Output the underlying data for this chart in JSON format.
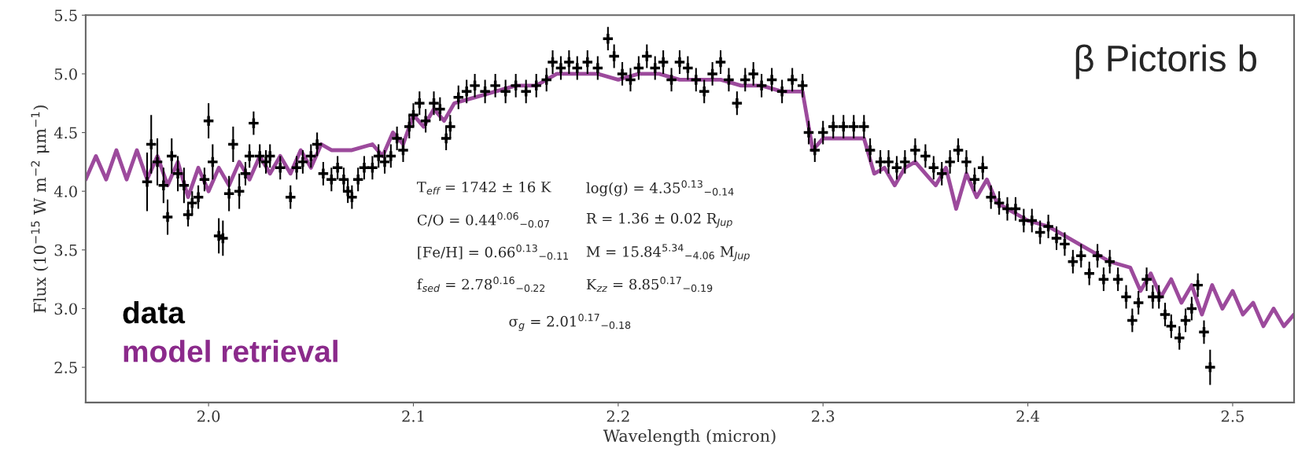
{
  "chart_data": {
    "type": "scatter",
    "title": "β Pictoris b",
    "xlabel": "Wavelength (micron)",
    "ylabel": "Flux (10$^{−15}$ W m$^{−2}$ μm$^{−1}$)",
    "xlim": [
      1.94,
      2.53
    ],
    "xticks": [
      {
        "value": 2,
        "label": "2.0"
      },
      2.1,
      2.2,
      2.3,
      2.4,
      2.5
    ],
    "ylim": [
      2.2,
      5.5
    ],
    "yticks": [
      2.5,
      {
        "value": 3,
        "label": "3.0"
      },
      3.5,
      {
        "value": 4,
        "label": "4.0"
      },
      4.5,
      {
        "value": 5,
        "label": "5.0"
      },
      5.5
    ],
    "grid": false,
    "legend": "bottom left",
    "annotations": [
      "T$_{eff}$ = 1742 ± 16 K",
      "log(g) = 4.35$^{0.13}$$_{−0.14}$",
      "C/O = 0.44$^{0.06}$$_{−0.07}$",
      "R = 1.36 ± 0.02 R$_{Jup}$",
      "[Fe/H] = 0.66$^{0.13}$$_{−0.11}$",
      "M = 15.84$^{5.34}$$_{−4.06}$ M$_{Jup}$",
      "f$_{sed}$ = 2.78$^{0.16}$$_{−0.22}$",
      "K$_{zz}$ = 8.85$^{0.17}$$_{−0.19}$",
      "σ$_{g}$ = 2.01$^{0.17}$$_{−0.18}$"
    ],
    "series": [
      {
        "name": "model retrieval",
        "type": "line",
        "color": "#8b2a8b",
        "line_style": "solid",
        "marker": "none",
        "x": [
          1.94,
          1.945,
          1.95,
          1.955,
          1.96,
          1.965,
          1.97,
          1.975,
          1.98,
          1.985,
          1.99,
          1.995,
          2.0,
          2.005,
          2.01,
          2.015,
          2.02,
          2.025,
          2.03,
          2.035,
          2.04,
          2.045,
          2.05,
          2.055,
          2.06,
          2.07,
          2.08,
          2.085,
          2.09,
          2.095,
          2.1,
          2.105,
          2.11,
          2.115,
          2.12,
          2.13,
          2.14,
          2.15,
          2.16,
          2.17,
          2.18,
          2.19,
          2.2,
          2.21,
          2.22,
          2.23,
          2.24,
          2.25,
          2.26,
          2.27,
          2.28,
          2.29,
          2.295,
          2.3,
          2.31,
          2.32,
          2.325,
          2.33,
          2.335,
          2.34,
          2.345,
          2.35,
          2.355,
          2.36,
          2.365,
          2.37,
          2.375,
          2.38,
          2.385,
          2.39,
          2.4,
          2.41,
          2.42,
          2.43,
          2.44,
          2.45,
          2.455,
          2.46,
          2.465,
          2.47,
          2.475,
          2.48,
          2.485,
          2.49,
          2.495,
          2.5,
          2.505,
          2.51,
          2.515,
          2.52,
          2.525,
          2.53
        ],
        "values": [
          4.1,
          4.3,
          4.1,
          4.35,
          4.1,
          4.35,
          4.1,
          4.3,
          4.05,
          4.25,
          3.95,
          4.2,
          4.0,
          4.2,
          4.05,
          4.25,
          4.1,
          4.3,
          4.15,
          4.3,
          4.15,
          4.35,
          4.2,
          4.4,
          4.35,
          4.35,
          4.4,
          4.3,
          4.5,
          4.4,
          4.65,
          4.55,
          4.7,
          4.6,
          4.75,
          4.8,
          4.85,
          4.9,
          4.9,
          5.0,
          5.0,
          5.0,
          4.95,
          5.0,
          5.0,
          4.95,
          4.95,
          4.95,
          4.9,
          4.9,
          4.85,
          4.85,
          4.35,
          4.45,
          4.45,
          4.45,
          4.15,
          4.2,
          4.05,
          4.2,
          4.25,
          4.15,
          4.05,
          4.2,
          3.85,
          4.15,
          3.95,
          4.1,
          3.9,
          3.85,
          3.75,
          3.7,
          3.6,
          3.5,
          3.4,
          3.35,
          3.15,
          3.3,
          3.1,
          3.25,
          3.05,
          3.2,
          2.95,
          3.2,
          3.0,
          3.15,
          2.95,
          3.05,
          2.85,
          3.0,
          2.85,
          2.95
        ]
      },
      {
        "name": "data",
        "color": "#000000",
        "marker": "cross",
        "x": [
          1.97,
          1.972,
          1.975,
          1.978,
          1.98,
          1.982,
          1.985,
          1.988,
          1.99,
          1.992,
          1.995,
          1.998,
          2.0,
          2.002,
          2.005,
          2.007,
          2.01,
          2.012,
          2.015,
          2.018,
          2.02,
          2.022,
          2.025,
          2.028,
          2.03,
          2.035,
          2.04,
          2.043,
          2.046,
          2.05,
          2.053,
          2.056,
          2.06,
          2.063,
          2.066,
          2.068,
          2.07,
          2.073,
          2.076,
          2.08,
          2.083,
          2.086,
          2.089,
          2.092,
          2.095,
          2.098,
          2.1,
          2.103,
          2.106,
          2.11,
          2.113,
          2.116,
          2.118,
          2.122,
          2.126,
          2.13,
          2.135,
          2.14,
          2.145,
          2.15,
          2.155,
          2.16,
          2.165,
          2.168,
          2.172,
          2.176,
          2.18,
          2.185,
          2.19,
          2.195,
          2.198,
          2.202,
          2.206,
          2.21,
          2.214,
          2.218,
          2.222,
          2.226,
          2.23,
          2.234,
          2.238,
          2.242,
          2.246,
          2.25,
          2.254,
          2.258,
          2.262,
          2.266,
          2.27,
          2.275,
          2.28,
          2.285,
          2.29,
          2.293,
          2.296,
          2.3,
          2.305,
          2.31,
          2.315,
          2.32,
          2.323,
          2.328,
          2.332,
          2.336,
          2.34,
          2.345,
          2.35,
          2.354,
          2.358,
          2.362,
          2.366,
          2.37,
          2.374,
          2.378,
          2.382,
          2.386,
          2.39,
          2.394,
          2.398,
          2.402,
          2.406,
          2.41,
          2.414,
          2.418,
          2.422,
          2.426,
          2.43,
          2.434,
          2.437,
          2.44,
          2.444,
          2.448,
          2.451,
          2.454,
          2.458,
          2.461,
          2.464,
          2.467,
          2.47,
          2.474,
          2.477,
          2.48,
          2.483,
          2.486,
          2.489
        ],
        "values": [
          4.08,
          4.4,
          4.25,
          4.05,
          3.78,
          4.3,
          4.15,
          4.05,
          3.8,
          3.9,
          3.95,
          4.1,
          4.6,
          4.25,
          3.62,
          3.6,
          3.98,
          4.4,
          4.0,
          4.15,
          4.3,
          4.58,
          4.3,
          4.25,
          4.3,
          4.2,
          3.95,
          4.2,
          4.25,
          4.3,
          4.4,
          4.15,
          4.1,
          4.2,
          4.1,
          4.0,
          3.95,
          4.1,
          4.2,
          4.2,
          4.3,
          4.25,
          4.3,
          4.45,
          4.35,
          4.55,
          4.65,
          4.75,
          4.6,
          4.75,
          4.7,
          4.45,
          4.55,
          4.8,
          4.85,
          4.9,
          4.85,
          4.9,
          4.85,
          4.9,
          4.85,
          4.9,
          4.95,
          5.1,
          5.05,
          5.1,
          5.05,
          5.1,
          5.05,
          5.3,
          5.15,
          5.0,
          4.95,
          5.05,
          5.15,
          5.05,
          5.1,
          4.95,
          5.1,
          5.05,
          4.95,
          4.85,
          5.0,
          5.1,
          4.95,
          4.75,
          4.95,
          5.0,
          4.9,
          4.95,
          4.85,
          4.95,
          4.9,
          4.5,
          4.35,
          4.5,
          4.55,
          4.55,
          4.55,
          4.55,
          4.35,
          4.25,
          4.25,
          4.2,
          4.25,
          4.35,
          4.3,
          4.2,
          4.15,
          4.25,
          4.35,
          4.25,
          4.1,
          4.2,
          3.95,
          3.9,
          3.85,
          3.85,
          3.75,
          3.75,
          3.65,
          3.7,
          3.6,
          3.55,
          3.4,
          3.45,
          3.3,
          3.45,
          3.25,
          3.4,
          3.25,
          3.1,
          2.9,
          3.05,
          3.25,
          3.1,
          3.1,
          2.95,
          2.85,
          2.75,
          2.9,
          3.0,
          3.2,
          2.8,
          2.5
        ],
        "errors": [
          0.25,
          0.25,
          0.2,
          0.15,
          0.15,
          0.15,
          0.15,
          0.15,
          0.1,
          0.1,
          0.1,
          0.1,
          0.15,
          0.15,
          0.15,
          0.15,
          0.15,
          0.15,
          0.15,
          0.1,
          0.1,
          0.1,
          0.1,
          0.1,
          0.1,
          0.1,
          0.1,
          0.1,
          0.1,
          0.1,
          0.1,
          0.1,
          0.1,
          0.1,
          0.1,
          0.1,
          0.1,
          0.1,
          0.1,
          0.1,
          0.1,
          0.1,
          0.1,
          0.1,
          0.1,
          0.1,
          0.1,
          0.1,
          0.1,
          0.1,
          0.1,
          0.1,
          0.1,
          0.1,
          0.1,
          0.1,
          0.1,
          0.1,
          0.1,
          0.1,
          0.1,
          0.1,
          0.1,
          0.1,
          0.1,
          0.1,
          0.1,
          0.1,
          0.1,
          0.1,
          0.1,
          0.1,
          0.1,
          0.1,
          0.1,
          0.1,
          0.1,
          0.1,
          0.1,
          0.1,
          0.1,
          0.1,
          0.1,
          0.1,
          0.1,
          0.1,
          0.1,
          0.1,
          0.1,
          0.1,
          0.1,
          0.1,
          0.1,
          0.1,
          0.1,
          0.1,
          0.1,
          0.1,
          0.1,
          0.1,
          0.1,
          0.1,
          0.1,
          0.1,
          0.1,
          0.1,
          0.1,
          0.1,
          0.1,
          0.1,
          0.1,
          0.1,
          0.1,
          0.1,
          0.1,
          0.1,
          0.1,
          0.1,
          0.1,
          0.1,
          0.1,
          0.1,
          0.1,
          0.1,
          0.1,
          0.1,
          0.1,
          0.1,
          0.1,
          0.1,
          0.1,
          0.1,
          0.1,
          0.1,
          0.1,
          0.1,
          0.1,
          0.1,
          0.1,
          0.1,
          0.1,
          0.1,
          0.1,
          0.1,
          0.15
        ]
      }
    ]
  }
}
